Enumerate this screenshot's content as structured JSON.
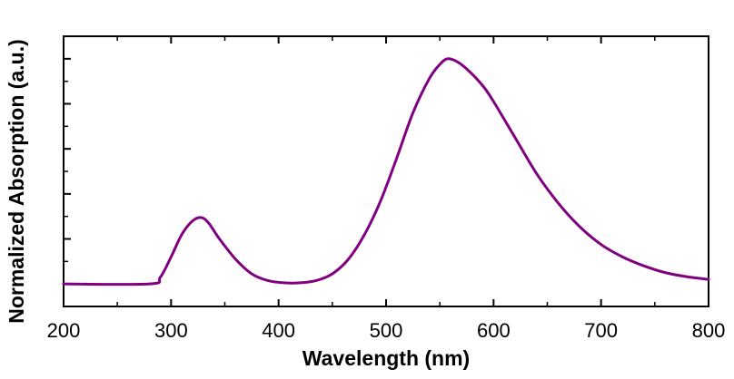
{
  "chart_data": {
    "type": "line",
    "title": "",
    "xlabel": "Wavelength (nm)",
    "ylabel": "Normalized Absorption (a.u.)",
    "xlim": [
      200,
      800
    ],
    "ylim": [
      -0.1,
      1.1
    ],
    "x_ticks": [
      "200",
      "300",
      "400",
      "500",
      "600",
      "700",
      "800"
    ],
    "y_ticks_labeled": false,
    "grid": false,
    "legend": "none",
    "line_color": "#800080",
    "series": [
      {
        "x": [
          200,
          280,
          290,
          300,
          310,
          320,
          328,
          335,
          345,
          360,
          375,
          390,
          405,
          420,
          435,
          450,
          465,
          480,
          495,
          510,
          525,
          540,
          550,
          557,
          565,
          575,
          590,
          600,
          620,
          640,
          660,
          680,
          700,
          720,
          740,
          760,
          780,
          800
        ],
        "y": [
          0.0,
          0.0,
          0.03,
          0.12,
          0.22,
          0.28,
          0.295,
          0.27,
          0.2,
          0.11,
          0.045,
          0.015,
          0.005,
          0.005,
          0.015,
          0.045,
          0.11,
          0.22,
          0.37,
          0.56,
          0.76,
          0.91,
          0.975,
          1.0,
          0.99,
          0.955,
          0.88,
          0.81,
          0.65,
          0.49,
          0.36,
          0.255,
          0.175,
          0.12,
          0.08,
          0.05,
          0.032,
          0.02
        ]
      }
    ]
  }
}
